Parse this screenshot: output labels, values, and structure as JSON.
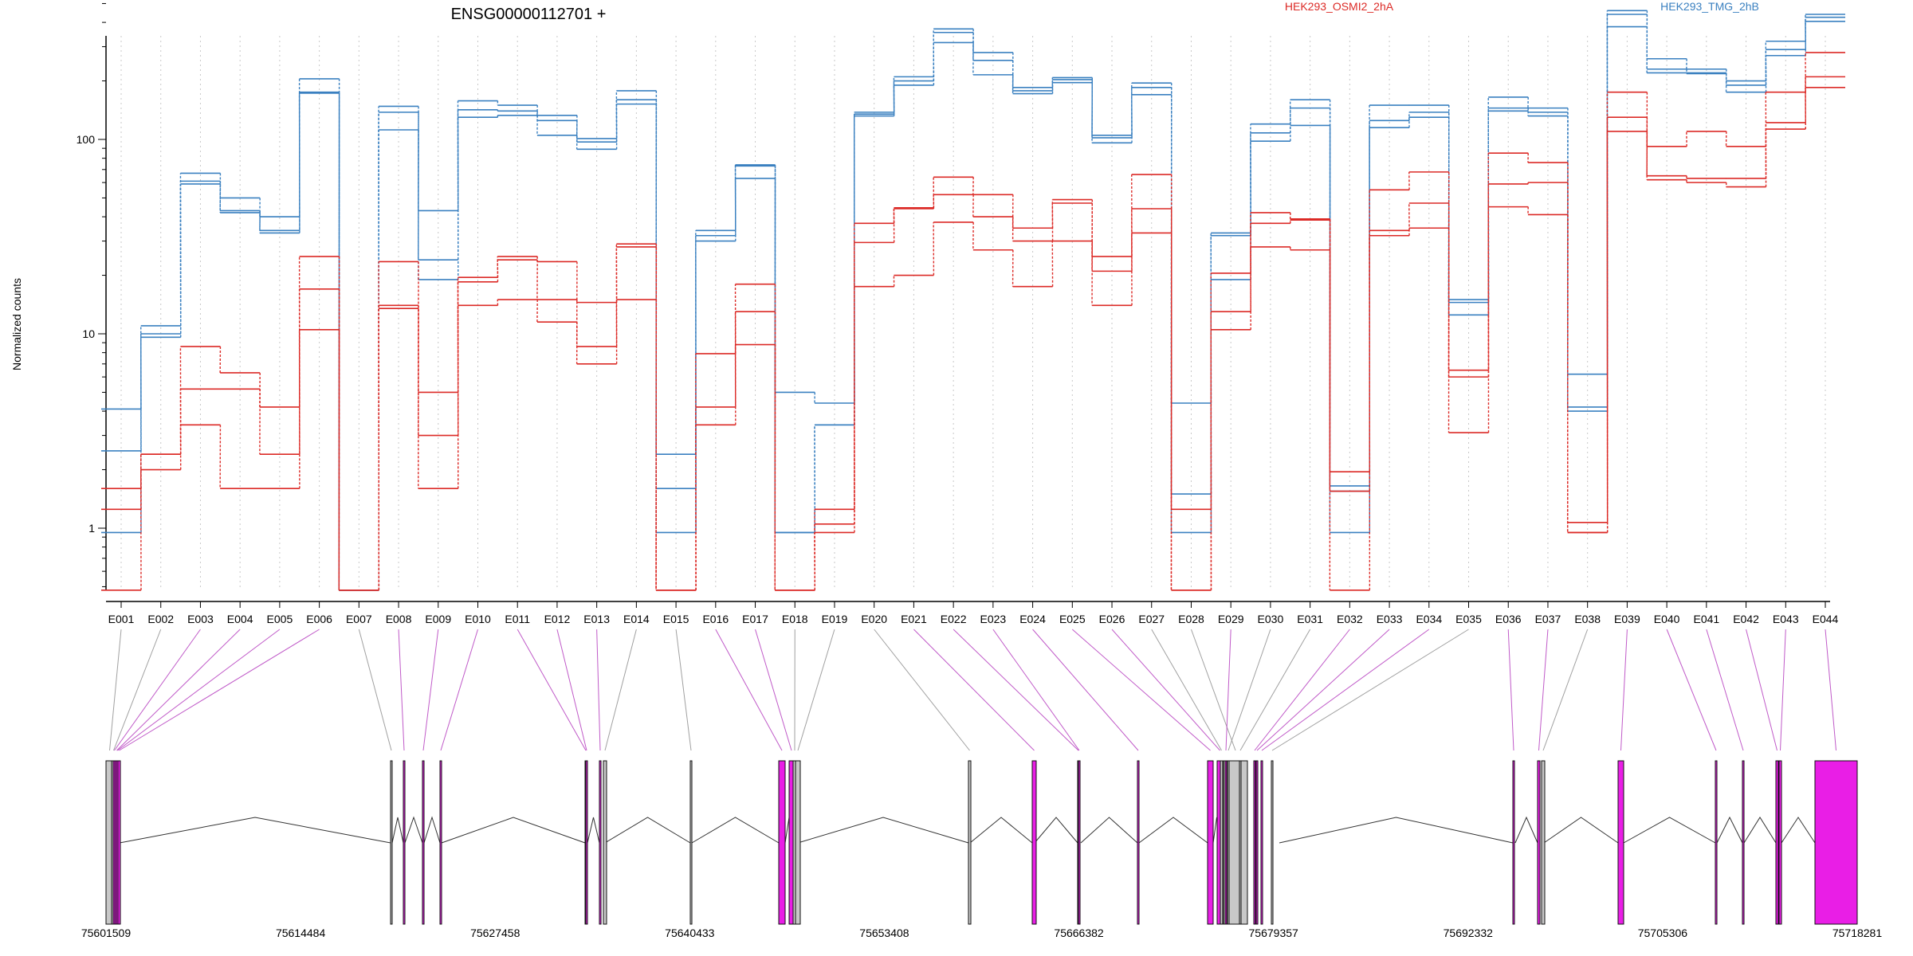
{
  "chart_data": {
    "type": "line",
    "title": "ENSG00000112701 +",
    "ylabel": "Normalized counts",
    "yscale": "log",
    "ylim": [
      0.5,
      600
    ],
    "yticks": [
      "1",
      "10",
      "100"
    ],
    "grid": "vertical dotted lines at each exon",
    "legend_position": "top",
    "categories": [
      "E001",
      "E002",
      "E003",
      "E004",
      "E005",
      "E006",
      "E007",
      "E008",
      "E009",
      "E010",
      "E011",
      "E012",
      "E013",
      "E014",
      "E015",
      "E016",
      "E017",
      "E018",
      "E019",
      "E020",
      "E021",
      "E022",
      "E023",
      "E024",
      "E025",
      "E026",
      "E027",
      "E028",
      "E029",
      "E030",
      "E031",
      "E032",
      "E033",
      "E034",
      "E035",
      "E036",
      "E037",
      "E038",
      "E039",
      "E040",
      "E041",
      "E042",
      "E043",
      "E044"
    ],
    "groups": [
      {
        "name": "HEK293_OSMI2_2hA",
        "color": "#dc2a26"
      },
      {
        "name": "HEK293_TMG_2hB",
        "color": "#3a80c0"
      }
    ],
    "series": [
      {
        "group": "HEK293_TMG_2hB",
        "values": [
          4.1,
          11,
          67,
          50,
          40,
          205,
          0.48,
          148,
          43,
          158,
          150,
          133,
          101,
          178,
          2.4,
          34,
          74,
          5,
          4.4,
          138,
          210,
          370,
          280,
          185,
          208,
          105,
          195,
          4.4,
          33,
          120,
          160,
          1.65,
          150,
          150,
          15,
          165,
          145,
          6.2,
          460,
          260,
          230,
          200,
          320,
          440
        ]
      },
      {
        "name": "",
        "group": "HEK293_TMG_2hB",
        "values": [
          2.5,
          10,
          61,
          43,
          34,
          175,
          0.48,
          138,
          24,
          142,
          140,
          125,
          97,
          160,
          1.6,
          32,
          73,
          0.95,
          3.4,
          135,
          200,
          355,
          255,
          178,
          203,
          102,
          185,
          1.5,
          32,
          108,
          145,
          1.55,
          125,
          138,
          14.5,
          145,
          138,
          4.2,
          440,
          230,
          220,
          190,
          290,
          425
        ]
      },
      {
        "name": "",
        "group": "HEK293_TMG_2hB",
        "values": [
          0.95,
          9.6,
          59,
          42,
          33,
          173,
          0.48,
          112,
          19,
          130,
          133,
          105,
          89,
          152,
          0.95,
          30,
          63,
          0.95,
          3.4,
          132,
          190,
          315,
          215,
          172,
          196,
          96,
          170,
          0.95,
          19,
          98,
          118,
          0.95,
          115,
          130,
          12.5,
          140,
          132,
          4.0,
          380,
          220,
          218,
          175,
          270,
          405
        ]
      },
      {
        "name": "",
        "group": "HEK293_OSMI2_2hA",
        "values": [
          1.6,
          2.4,
          8.6,
          6.3,
          4.2,
          25,
          0.48,
          23.5,
          5,
          19.5,
          25,
          23.5,
          8.6,
          29,
          0.48,
          7.9,
          18,
          0.48,
          1.25,
          37,
          44.5,
          64,
          52,
          35,
          49,
          25,
          66,
          1.25,
          20.5,
          42,
          39,
          1.95,
          55,
          68,
          6.5,
          85,
          76,
          1.07,
          175,
          92,
          110,
          92,
          175,
          280
        ]
      },
      {
        "name": "",
        "group": "HEK293_OSMI2_2hA",
        "values": [
          1.25,
          2.4,
          5.2,
          5.2,
          2.4,
          17,
          0.48,
          14,
          3,
          18.5,
          24,
          15,
          14.5,
          28,
          0.48,
          4.2,
          13,
          0.48,
          1.05,
          29.5,
          44,
          52,
          40,
          30,
          47,
          21,
          44,
          0.48,
          13,
          37,
          38.5,
          1.55,
          34,
          47,
          6,
          59,
          60,
          0.95,
          130,
          65,
          63,
          63,
          122,
          210
        ]
      },
      {
        "name": "",
        "group": "HEK293_OSMI2_2hA",
        "values": [
          0.48,
          2,
          3.4,
          1.6,
          1.6,
          10.5,
          0.48,
          13.5,
          1.6,
          14,
          15,
          11.5,
          7,
          15,
          0.48,
          3.4,
          8.8,
          0.48,
          0.95,
          17.5,
          20,
          37.5,
          27,
          17.5,
          30,
          14,
          33,
          0.48,
          10.5,
          28,
          27,
          0.48,
          32,
          35,
          3.1,
          45,
          41,
          0.95,
          110,
          62,
          60,
          57,
          113,
          185
        ]
      }
    ],
    "coordinate_labels": [
      "75601509",
      "75614484",
      "75627458",
      "75640433",
      "75653408",
      "75666382",
      "75679357",
      "75692332",
      "75705306",
      "75718281"
    ],
    "gene_model": {
      "exon_highlight_color": "#e91ee6",
      "exon_nonsig_color": "#c8c8c8",
      "exon_colors": [
        "gray",
        "gray",
        "magenta",
        "magenta",
        "magenta",
        "magenta",
        "gray",
        "magenta",
        "magenta",
        "magenta",
        "magenta",
        "magenta",
        "magenta",
        "gray",
        "gray",
        "magenta",
        "magenta",
        "gray",
        "gray",
        "gray",
        "magenta",
        "magenta",
        "magenta",
        "magenta",
        "magenta",
        "magenta",
        "gray",
        "gray",
        "magenta",
        "gray",
        "gray",
        "magenta",
        "magenta",
        "magenta",
        "gray",
        "magenta",
        "magenta",
        "gray",
        "magenta",
        "magenta",
        "magenta",
        "magenta",
        "magenta",
        "magenta"
      ]
    }
  }
}
